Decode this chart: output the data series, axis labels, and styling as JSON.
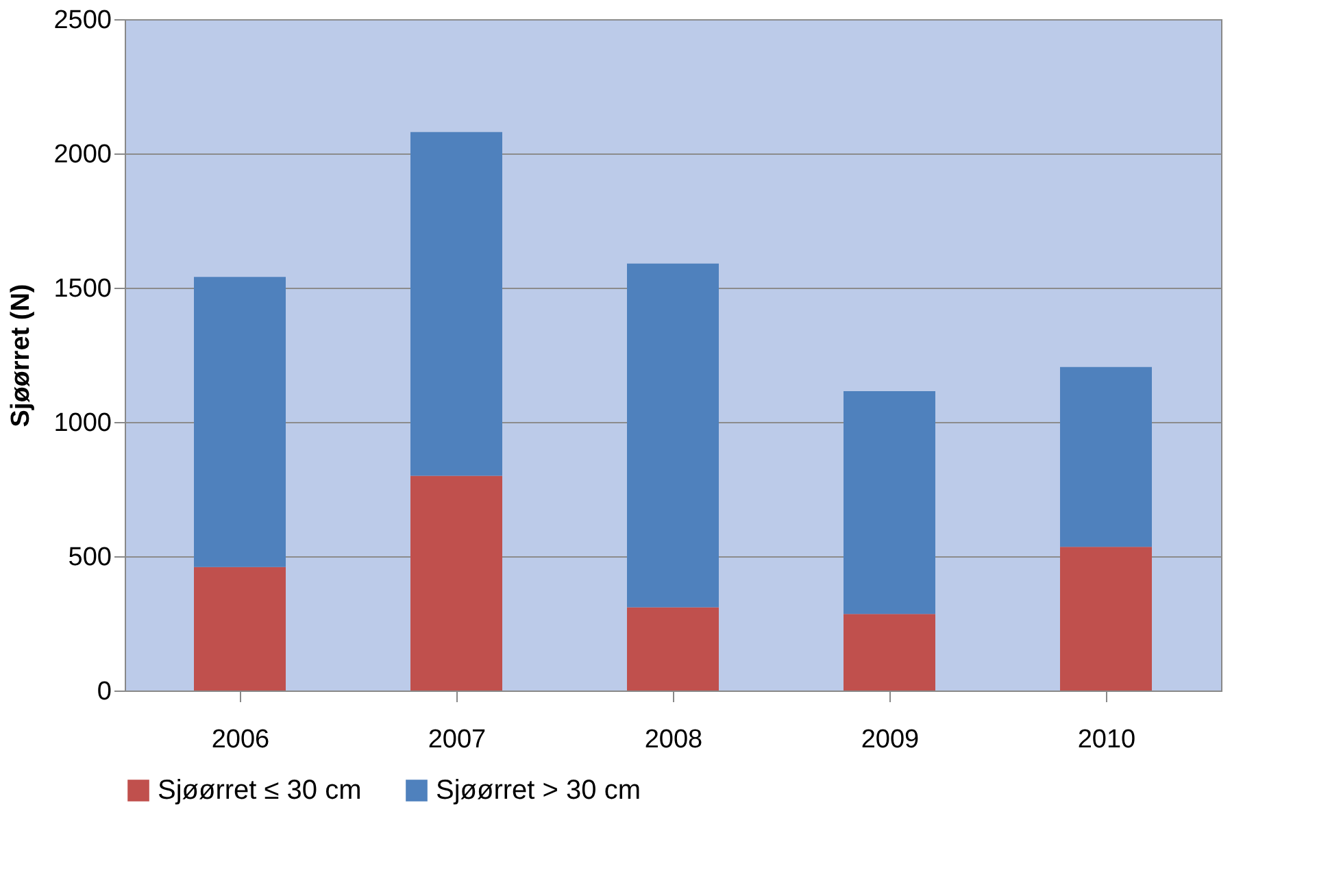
{
  "chart_data": {
    "type": "bar",
    "stacked": true,
    "ylabel": "Sjøørret (N)",
    "categories": [
      "2006",
      "2007",
      "2008",
      "2009",
      "2010"
    ],
    "series": [
      {
        "name": "Sjøørret ≤ 30 cm",
        "color": "#c0504d",
        "values": [
          460,
          800,
          310,
          285,
          535
        ]
      },
      {
        "name": "Sjøørret > 30 cm",
        "color": "#4f81bd",
        "values": [
          1080,
          1280,
          1280,
          830,
          670
        ]
      }
    ],
    "ylim": [
      0,
      2500
    ],
    "yticks": [
      0,
      500,
      1000,
      1500,
      2000,
      2500
    ],
    "grid": "y",
    "legend": "bottom"
  }
}
